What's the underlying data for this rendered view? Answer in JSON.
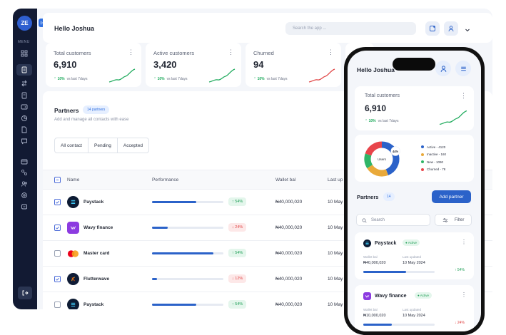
{
  "sidebar": {
    "avatar": "ZE",
    "menu_label": "MENU"
  },
  "header": {
    "greeting": "Hello Joshua",
    "search_placeholder": "Search the app ..."
  },
  "stats": [
    {
      "label": "Total customers",
      "value": "6,910",
      "trend": "10%",
      "trend_note": "vs last 7days",
      "trend_color": "#1eaa5c"
    },
    {
      "label": "Active customers",
      "value": "3,420",
      "trend": "10%",
      "trend_note": "vs last 7days",
      "trend_color": "#1eaa5c"
    },
    {
      "label": "Churned",
      "value": "94",
      "trend": "10%",
      "trend_note": "vs last 7days",
      "trend_color": "#e04444"
    }
  ],
  "partners": {
    "title": "Partners",
    "badge": "14 partners",
    "subtitle": "Add and manage all contacts with ease",
    "filters": [
      "All contact",
      "Pending",
      "Accepted"
    ],
    "columns": [
      "Name",
      "Performance",
      "Wallet bal",
      "Last up"
    ],
    "rows": [
      {
        "name": "Paystack",
        "checked": true,
        "performance": 0.62,
        "change": "54%",
        "direction": "up",
        "wallet": "₦40,000,020",
        "date": "10 May"
      },
      {
        "name": "Wavy finance",
        "checked": true,
        "performance": 0.22,
        "change": "24%",
        "direction": "down",
        "wallet": "₦40,000,020",
        "date": "10 May"
      },
      {
        "name": "Master card",
        "checked": false,
        "performance": 0.86,
        "change": "54%",
        "direction": "up",
        "wallet": "₦40,000,020",
        "date": "10 May"
      },
      {
        "name": "Flutterwave",
        "checked": true,
        "performance": 0.07,
        "change": "12%",
        "direction": "down",
        "wallet": "₦40,000,020",
        "date": "10 May"
      },
      {
        "name": "Paystack",
        "checked": false,
        "performance": 0.62,
        "change": "54%",
        "direction": "up",
        "wallet": "₦40,000,020",
        "date": "10 May"
      }
    ]
  },
  "phone": {
    "greeting": "Hello Joshua",
    "stat": {
      "label": "Total customers",
      "value": "6,910",
      "trend": "10%",
      "trend_note": "vs last 7days"
    },
    "donut": {
      "center_label": "Users",
      "callout": "44%",
      "segments": [
        {
          "label": "Active",
          "value": "4120",
          "color": "#2b62c9",
          "share": 0.44
        },
        {
          "label": "Inactive",
          "value": "160",
          "color": "#e9a93a",
          "share": 0.22
        },
        {
          "label": "New",
          "value": "1090",
          "color": "#2fb567",
          "share": 0.14
        },
        {
          "label": "Churned",
          "value": "78",
          "color": "#e8454b",
          "share": 0.2
        }
      ]
    },
    "partners_title": "Partners",
    "partners_count": "14",
    "add_button": "Add partner",
    "search_placeholder": "Search",
    "filter_label": "Filter",
    "cards": [
      {
        "name": "Paystack",
        "status": "Active",
        "wallet_label": "Wallet bal",
        "wallet": "₦40,000,020",
        "updated_label": "Last updated",
        "updated": "10 May 2024",
        "performance": 0.6,
        "change": "54%",
        "direction": "up"
      },
      {
        "name": "Wavy finance",
        "status": "Active",
        "wallet_label": "Wallet bal",
        "wallet": "₦10,000,020",
        "updated_label": "Last updated",
        "updated": "10 May 2024",
        "performance": 0.4,
        "change": "24%",
        "direction": "down"
      }
    ]
  }
}
